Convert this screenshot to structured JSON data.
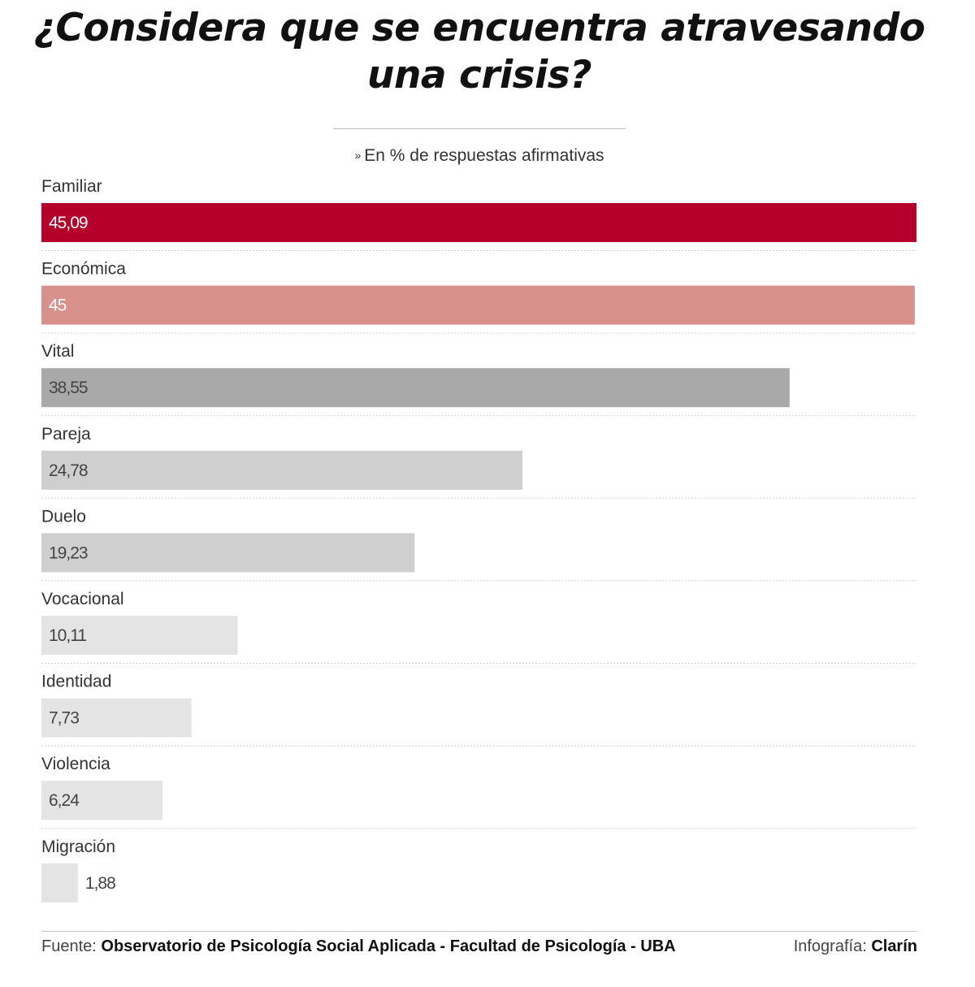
{
  "header": {
    "title": "¿Considera que se encuentra atravesando una crisis?",
    "subtitle_marker": "»",
    "subtitle": "En % de respuestas afirmativas"
  },
  "chart_data": {
    "type": "bar",
    "orientation": "horizontal",
    "title": "¿Considera que se encuentra atravesando una crisis?",
    "subtitle": "En % de respuestas afirmativas",
    "categories": [
      "Familiar",
      "Económica",
      "Vital",
      "Pareja",
      "Duelo",
      "Vocacional",
      "Identidad",
      "Violencia",
      "Migración"
    ],
    "values": [
      45.09,
      45,
      38.55,
      24.78,
      19.23,
      10.11,
      7.73,
      6.24,
      1.88
    ],
    "value_labels": [
      "45,09",
      "45",
      "38,55",
      "24,78",
      "19,23",
      "10,11",
      "7,73",
      "6,24",
      "1,88"
    ],
    "bar_colors": [
      "#b5002b",
      "#d8908b",
      "#a9a9a9",
      "#cfcfcf",
      "#cfcfcf",
      "#e4e4e4",
      "#e4e4e4",
      "#e4e4e4",
      "#e4e4e4"
    ],
    "label_colors": [
      "#ffffff",
      "#ffffff",
      "#444444",
      "#444444",
      "#444444",
      "#444444",
      "#444444",
      "#444444",
      "#444444"
    ],
    "xlim": [
      0,
      45.09
    ],
    "grid": false,
    "legend": "none"
  },
  "footer": {
    "source_prefix": "Fuente:",
    "source": "Observatorio de Psicología Social Aplicada - Facultad de Psicología - UBA",
    "credit_prefix": "Infografía:",
    "credit": "Clarín"
  }
}
